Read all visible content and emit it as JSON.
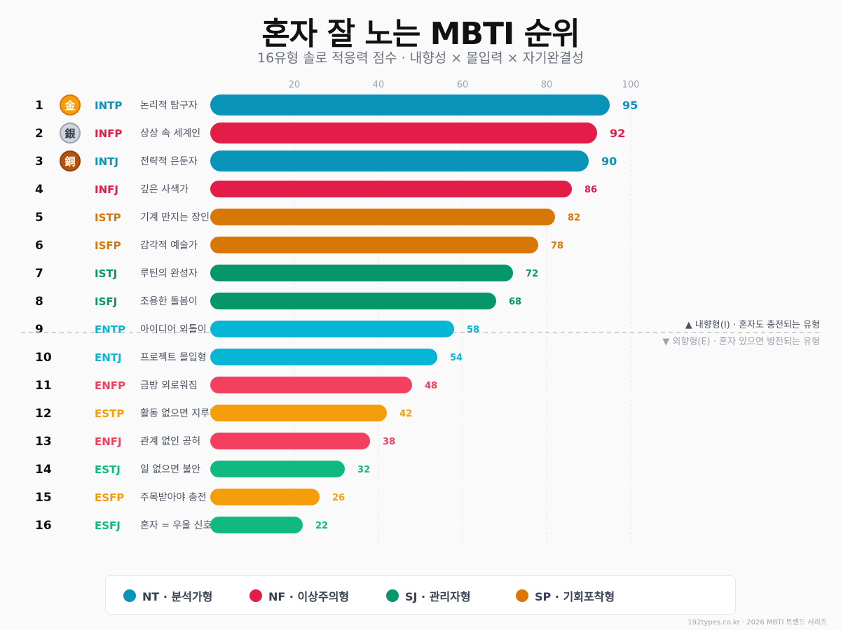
{
  "title": "혼자 잘 노는 MBTI 순위",
  "subtitle": "16유형 솔로 적응력 점수 · 내향성 × 몰입력 × 자기완결성",
  "divider": {
    "above": "▲ 내향형(I) · 혼자도 충전되는 유형",
    "below": "▼ 외향형(E) · 혼자 있으면 방전되는 유형"
  },
  "legend": [
    {
      "label": "NT · 분석가형",
      "color": "#0a93b8"
    },
    {
      "label": "NF · 이상주의형",
      "color": "#e11d48"
    },
    {
      "label": "SJ · 관리자형",
      "color": "#059669"
    },
    {
      "label": "SP · 기회포착형",
      "color": "#d97706"
    }
  ],
  "footer": "192types.co.kr · 2026 MBTI 트렌드 시리즈",
  "chart_data": {
    "type": "bar",
    "orientation": "horizontal",
    "xlim": [
      0,
      100
    ],
    "xticks": [
      20,
      40,
      60,
      80,
      100
    ],
    "grid": true,
    "rows": [
      {
        "rank": "1",
        "medal": "金",
        "type": "INTP",
        "name": "논리적 탐구자",
        "value": 95,
        "color": "#0a93b8"
      },
      {
        "rank": "2",
        "medal": "銀",
        "type": "INFP",
        "name": "상상 속 세계인",
        "value": 92,
        "color": "#e11d48"
      },
      {
        "rank": "3",
        "medal": "銅",
        "type": "INTJ",
        "name": "전략적 은둔자",
        "value": 90,
        "color": "#0a93b8"
      },
      {
        "rank": "4",
        "type": "INFJ",
        "name": "깊은 사색가",
        "value": 86,
        "color": "#e11d48"
      },
      {
        "rank": "5",
        "type": "ISTP",
        "name": "기계 만지는 장인",
        "value": 82,
        "color": "#d97706"
      },
      {
        "rank": "6",
        "type": "ISFP",
        "name": "감각적 예술가",
        "value": 78,
        "color": "#d97706"
      },
      {
        "rank": "7",
        "type": "ISTJ",
        "name": "루틴의 완성자",
        "value": 72,
        "color": "#059669"
      },
      {
        "rank": "8",
        "type": "ISFJ",
        "name": "조용한 돌봄이",
        "value": 68,
        "color": "#059669"
      },
      {
        "rank": "9",
        "type": "ENTP",
        "name": "아이디어 외톨이",
        "value": 58,
        "color": "#06b6d4"
      },
      {
        "rank": "10",
        "type": "ENTJ",
        "name": "프로젝트 몰입형",
        "value": 54,
        "color": "#06b6d4"
      },
      {
        "rank": "11",
        "type": "ENFP",
        "name": "금방 외로워짐",
        "value": 48,
        "color": "#f43f5e"
      },
      {
        "rank": "12",
        "type": "ESTP",
        "name": "활동 없으면 지루함",
        "value": 42,
        "color": "#f59e0b"
      },
      {
        "rank": "13",
        "type": "ENFJ",
        "name": "관계 없인 공허",
        "value": 38,
        "color": "#f43f5e"
      },
      {
        "rank": "14",
        "type": "ESTJ",
        "name": "일 없으면 불안",
        "value": 32,
        "color": "#10b981"
      },
      {
        "rank": "15",
        "type": "ESFP",
        "name": "주목받아야 충전",
        "value": 26,
        "color": "#f59e0b"
      },
      {
        "rank": "16",
        "type": "ESFJ",
        "name": "혼자 = 우울 신호",
        "value": 22,
        "color": "#10b981"
      }
    ]
  }
}
